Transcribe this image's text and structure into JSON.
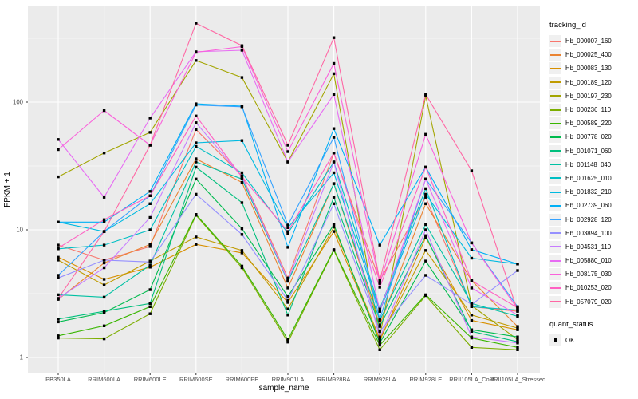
{
  "chart_data": {
    "type": "line",
    "title": "",
    "xlabel": "sample_name",
    "ylabel": "FPKM + 1",
    "y_scale": "log10",
    "y_ticks": [
      1,
      10,
      100
    ],
    "y_tick_labels": [
      "1",
      "10",
      "100"
    ],
    "y_minor_ticks": [
      3.162,
      31.623,
      316.228
    ],
    "ylim": [
      1,
      460
    ],
    "grid": "on",
    "legend_position": "right",
    "point_marker": "black-square",
    "categories": [
      "PB350LA",
      "RRIM600LA",
      "RRIM600LE",
      "RRIM600SE",
      "RRIM600PE",
      "RRIM901LA",
      "RRIM928BA",
      "RRIM928LA",
      "RRIM928LE",
      "RRII105LA_Cold",
      "RRII105LA_Stressed"
    ],
    "series": [
      {
        "name": "Hb_000007_160",
        "color": "#F8766D",
        "values": [
          7.6,
          5.8,
          7.4,
          61,
          26.5,
          4.2,
          40,
          4.0,
          18,
          2.5,
          2.3
        ]
      },
      {
        "name": "Hb_000025_400",
        "color": "#EA8331",
        "values": [
          2.85,
          5.5,
          7.7,
          36,
          23.5,
          3.5,
          23,
          1.8,
          16,
          4.0,
          1.75
        ]
      },
      {
        "name": "Hb_000083_130",
        "color": "#D89000",
        "values": [
          6.1,
          4.1,
          5.1,
          7.7,
          6.6,
          2.7,
          9.7,
          1.35,
          8.7,
          1.95,
          1.65
        ]
      },
      {
        "name": "Hb_000189_120",
        "color": "#C09B00",
        "values": [
          5.8,
          3.7,
          5.7,
          8.8,
          6.9,
          2.4,
          10.5,
          1.4,
          6.9,
          2.15,
          1.7
        ]
      },
      {
        "name": "Hb_000197_230",
        "color": "#A3A500",
        "values": [
          26,
          40,
          58,
          212,
          156,
          34,
          167,
          1.45,
          112,
          2.55,
          1.38
        ]
      },
      {
        "name": "Hb_000236_110",
        "color": "#7CAE00",
        "values": [
          1.42,
          1.4,
          2.2,
          13,
          5.05,
          1.32,
          6.9,
          1.15,
          3.05,
          1.2,
          1.15
        ]
      },
      {
        "name": "Hb_000589_220",
        "color": "#39B600",
        "values": [
          1.48,
          1.77,
          2.5,
          13.2,
          5.2,
          1.38,
          7.0,
          1.25,
          3.1,
          1.42,
          1.2
        ]
      },
      {
        "name": "Hb_000778_020",
        "color": "#00BB4E",
        "values": [
          1.9,
          2.25,
          3.4,
          25,
          10.2,
          3.0,
          11,
          1.3,
          5.7,
          1.65,
          1.45
        ]
      },
      {
        "name": "Hb_001071_060",
        "color": "#00BF7D",
        "values": [
          2.0,
          2.3,
          2.65,
          31,
          16.3,
          2.15,
          18,
          1.75,
          9.0,
          1.6,
          1.33
        ]
      },
      {
        "name": "Hb_001148_040",
        "color": "#00C1A3",
        "values": [
          3.1,
          2.97,
          5.3,
          34,
          25,
          3.95,
          23,
          1.95,
          11,
          2.65,
          2.1
        ]
      },
      {
        "name": "Hb_001625_010",
        "color": "#00BFC4",
        "values": [
          7.1,
          7.6,
          10,
          45,
          28,
          9.4,
          34,
          2.4,
          21,
          2.5,
          2.35
        ]
      },
      {
        "name": "Hb_001832_210",
        "color": "#00BAE0",
        "values": [
          11.5,
          9.7,
          16,
          48,
          50,
          10.4,
          28,
          2.3,
          19,
          6.0,
          5.4
        ]
      },
      {
        "name": "Hb_002739_060",
        "color": "#00B0F6",
        "values": [
          11.5,
          11.5,
          20,
          97,
          93,
          7.3,
          62,
          7.6,
          31,
          7.0,
          5.4
        ]
      },
      {
        "name": "Hb_002928_120",
        "color": "#35A2FF",
        "values": [
          4.4,
          9.7,
          18.5,
          95,
          92,
          10.9,
          53,
          2.0,
          25,
          7.9,
          2.5
        ]
      },
      {
        "name": "Hb_003894_100",
        "color": "#9590FF",
        "values": [
          4.2,
          5.8,
          5.6,
          19,
          9.2,
          2.8,
          16,
          1.6,
          4.4,
          2.6,
          4.8
        ]
      },
      {
        "name": "Hb_004531_110",
        "color": "#C77CFF",
        "values": [
          2.9,
          5.05,
          12.5,
          69,
          26,
          4.0,
          34,
          1.42,
          10,
          1.45,
          1.3
        ]
      },
      {
        "name": "Hb_005880_010",
        "color": "#E76BF3",
        "values": [
          51,
          18,
          75,
          248,
          255,
          34,
          115,
          2.3,
          25,
          3.5,
          2.15
        ]
      },
      {
        "name": "Hb_008175_030",
        "color": "#FA62DB",
        "values": [
          42.5,
          86,
          46,
          246,
          272,
          41,
          201,
          3.8,
          56,
          7.9,
          2.4
        ]
      },
      {
        "name": "Hb_010253_020",
        "color": "#FF61C3",
        "values": [
          7.2,
          12,
          18.5,
          78,
          26,
          9.7,
          40,
          3.55,
          31,
          4.0,
          2.45
        ]
      },
      {
        "name": "Hb_057079_020",
        "color": "#FF67A4",
        "values": [
          2.9,
          9.7,
          46,
          415,
          277,
          46,
          320,
          4.0,
          115,
          29,
          2.3
        ]
      }
    ],
    "tracking_legend": {
      "title": "tracking_id"
    },
    "quant_legend": {
      "title": "quant_status",
      "entries": [
        {
          "label": "OK",
          "marker": "black-square"
        }
      ]
    }
  },
  "style": {
    "panel_bg": "#EBEBEB",
    "grid_major": "#FFFFFF",
    "grid_minor": "#F4F4F4",
    "tick_color": "#333333",
    "tick_label_color": "#4D4D4D",
    "axis_title_color": "#000000",
    "point_color": "#000000",
    "legend_key_bg": "#F0F0F0"
  }
}
